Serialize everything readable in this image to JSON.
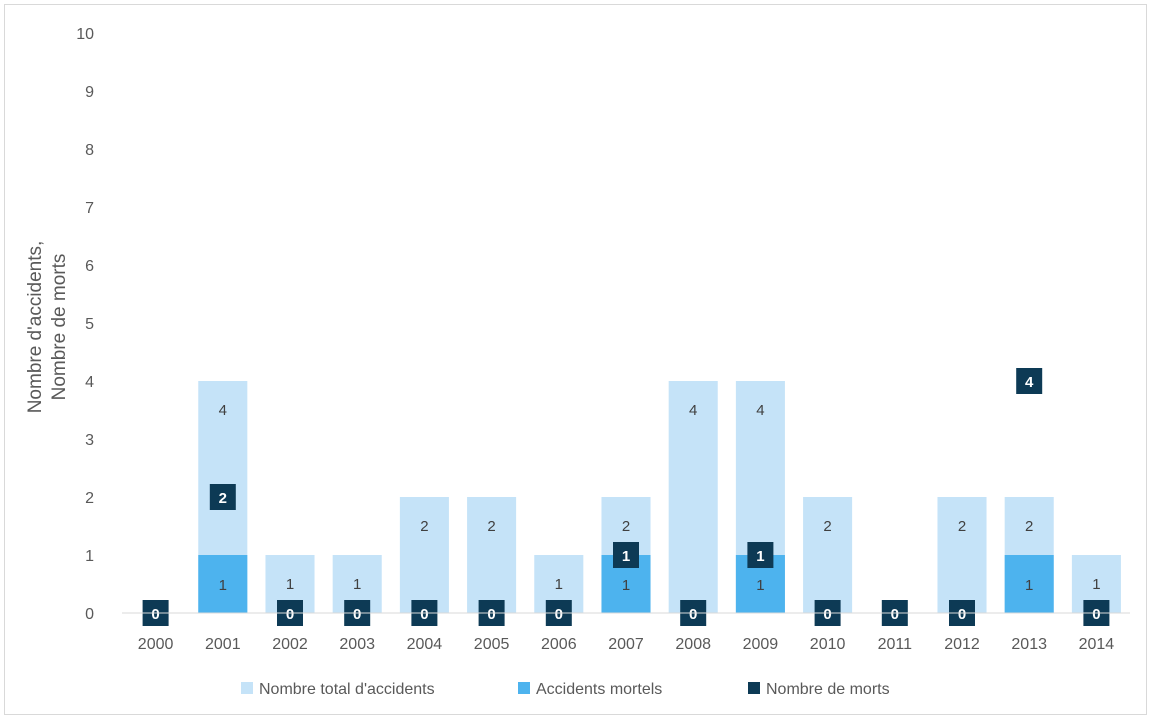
{
  "chart_data": {
    "type": "bar",
    "categories": [
      "2000",
      "2001",
      "2002",
      "2003",
      "2004",
      "2005",
      "2006",
      "2007",
      "2008",
      "2009",
      "2010",
      "2011",
      "2012",
      "2013",
      "2014"
    ],
    "series": [
      {
        "name": "Nombre total d'accidents",
        "values": [
          0,
          4,
          1,
          1,
          2,
          2,
          1,
          2,
          4,
          4,
          2,
          0,
          2,
          2,
          1
        ],
        "color": "#c5e3f8"
      },
      {
        "name": "Accidents mortels",
        "values": [
          0,
          1,
          0,
          0,
          0,
          0,
          0,
          1,
          0,
          1,
          0,
          0,
          0,
          1,
          0
        ],
        "color": "#4db3ee"
      },
      {
        "name": "Nombre de morts",
        "values": [
          0,
          2,
          0,
          0,
          0,
          0,
          0,
          1,
          0,
          1,
          0,
          0,
          0,
          4,
          0
        ],
        "color": "#0d3a55"
      }
    ],
    "ylabel_lines": [
      "Nombre d'accidents,",
      "Nombre de morts"
    ],
    "yticks": [
      "0",
      "1",
      "2",
      "3",
      "4",
      "5",
      "6",
      "7",
      "8",
      "9",
      "10"
    ],
    "ylim": [
      0,
      10
    ],
    "grid": false,
    "legend_position": "bottom"
  }
}
